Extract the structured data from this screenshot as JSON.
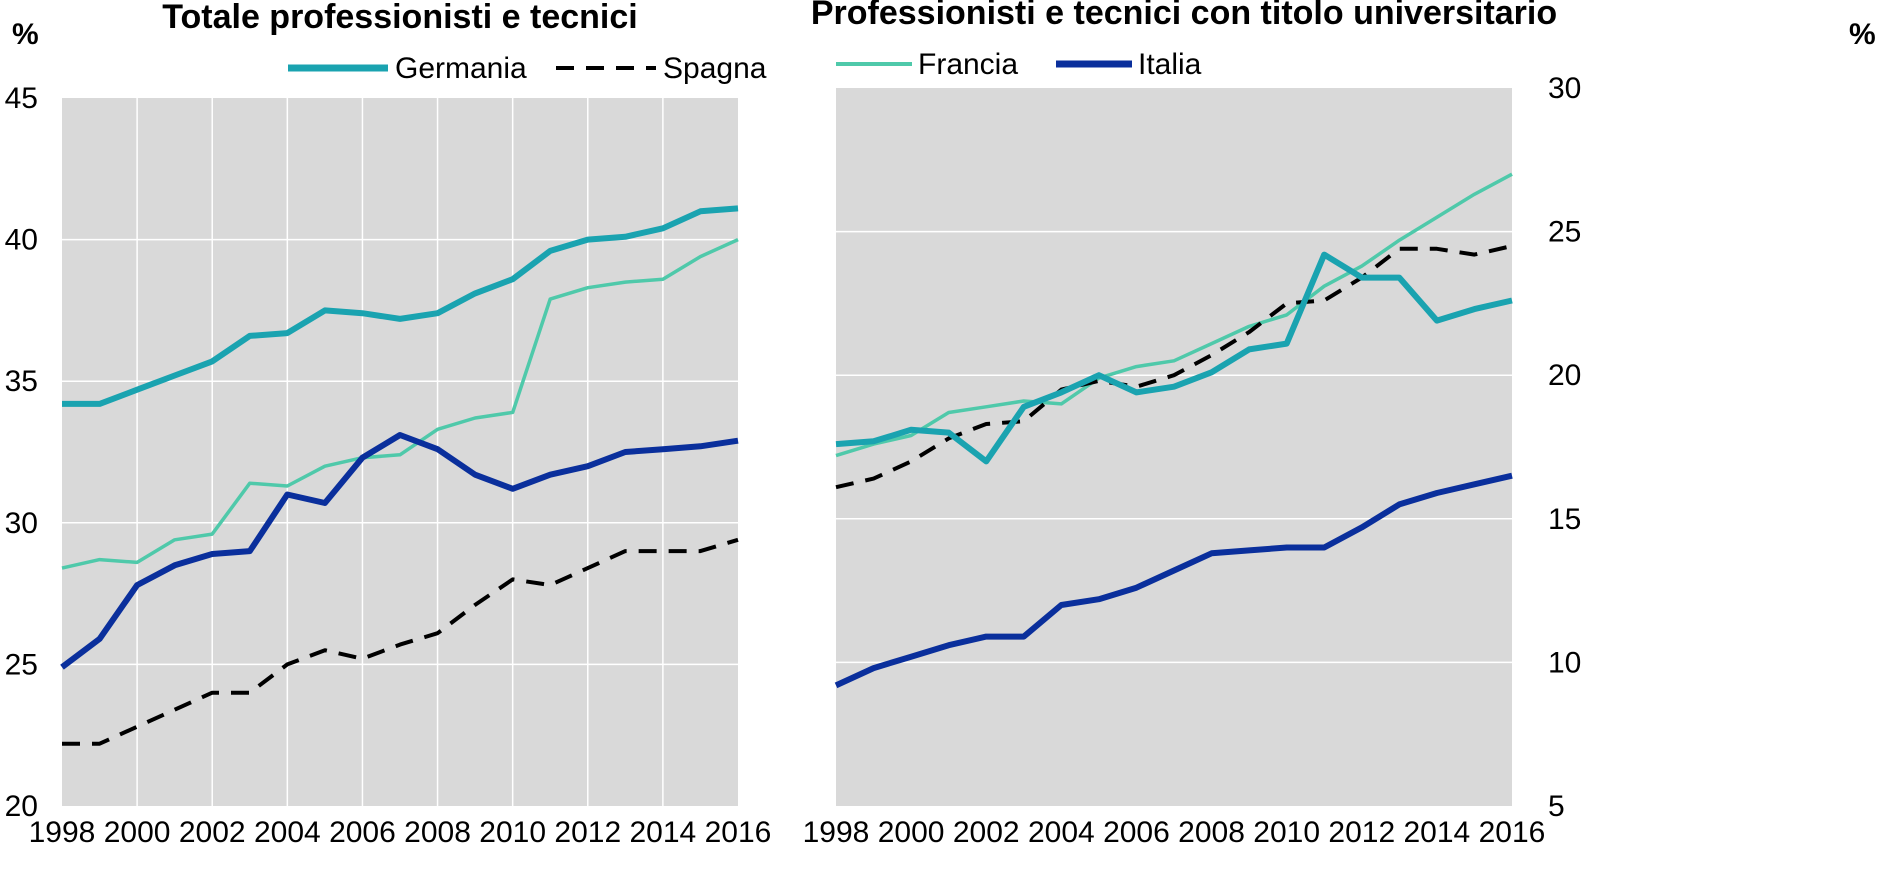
{
  "chart_data": [
    {
      "type": "line",
      "title": "Totale professionisti e tecnici",
      "ylabel": "%",
      "y_axis_side": "left",
      "ylim": [
        20,
        45
      ],
      "yticks": [
        20,
        25,
        30,
        35,
        40,
        45
      ],
      "xlim": [
        1998,
        2016
      ],
      "xticks": [
        1998,
        2000,
        2002,
        2004,
        2006,
        2008,
        2010,
        2012,
        2014,
        2016
      ],
      "grid": "vertical and horizontal",
      "legend": [
        "Germania",
        "Spagna"
      ],
      "x": [
        1998,
        1999,
        2000,
        2001,
        2002,
        2003,
        2004,
        2005,
        2006,
        2007,
        2008,
        2009,
        2010,
        2011,
        2012,
        2013,
        2014,
        2015,
        2016
      ],
      "series": [
        {
          "name": "Germania",
          "color": "#1aa3b0",
          "style": "thick",
          "values": [
            34.2,
            34.2,
            34.7,
            35.2,
            35.7,
            36.6,
            36.7,
            37.5,
            37.4,
            37.2,
            37.4,
            38.1,
            38.6,
            39.6,
            40.0,
            40.1,
            40.4,
            41.0,
            41.1
          ]
        },
        {
          "name": "Spagna",
          "color": "#000000",
          "style": "dashed",
          "values": [
            22.2,
            22.2,
            22.8,
            23.4,
            24.0,
            24.0,
            25.0,
            25.5,
            25.2,
            25.7,
            26.1,
            27.1,
            28.0,
            27.8,
            28.4,
            29.0,
            29.0,
            29.0,
            29.4
          ]
        },
        {
          "name": "Francia",
          "color": "#4fc9aa",
          "style": "thin",
          "values": [
            28.4,
            28.7,
            28.6,
            29.4,
            29.6,
            31.4,
            31.3,
            32.0,
            32.3,
            32.4,
            33.3,
            33.7,
            33.9,
            37.9,
            38.3,
            38.5,
            38.6,
            39.4,
            40.0
          ]
        },
        {
          "name": "Italia",
          "color": "#0a2f9c",
          "style": "thick",
          "values": [
            24.9,
            25.9,
            27.8,
            28.5,
            28.9,
            29.0,
            31.0,
            30.7,
            32.3,
            33.1,
            32.6,
            31.7,
            31.2,
            31.7,
            32.0,
            32.5,
            32.6,
            32.7,
            32.9
          ]
        }
      ]
    },
    {
      "type": "line",
      "title": "Professionisti e tecnici con titolo universitario",
      "ylabel": "%",
      "y_axis_side": "right",
      "ylim": [
        5,
        30
      ],
      "yticks": [
        5,
        10,
        15,
        20,
        25,
        30
      ],
      "xlim": [
        1998,
        2016
      ],
      "xticks": [
        1998,
        2000,
        2002,
        2004,
        2006,
        2008,
        2010,
        2012,
        2014,
        2016
      ],
      "grid": "horizontal",
      "legend": [
        "Francia",
        "Italia"
      ],
      "x": [
        1998,
        1999,
        2000,
        2001,
        2002,
        2003,
        2004,
        2005,
        2006,
        2007,
        2008,
        2009,
        2010,
        2011,
        2012,
        2013,
        2014,
        2015,
        2016
      ],
      "series": [
        {
          "name": "Germania",
          "color": "#1aa3b0",
          "style": "thick",
          "values": [
            17.6,
            17.7,
            18.1,
            18.0,
            17.0,
            18.9,
            19.4,
            20.0,
            19.4,
            19.6,
            20.1,
            20.9,
            21.1,
            24.2,
            23.4,
            23.4,
            21.9,
            22.3,
            22.6
          ]
        },
        {
          "name": "Spagna",
          "color": "#000000",
          "style": "dashed",
          "values": [
            16.1,
            16.4,
            17.0,
            17.8,
            18.3,
            18.4,
            19.5,
            19.8,
            19.6,
            20.0,
            20.7,
            21.5,
            22.5,
            22.6,
            23.4,
            24.4,
            24.4,
            24.2,
            24.5
          ]
        },
        {
          "name": "Francia",
          "color": "#4fc9aa",
          "style": "thin",
          "values": [
            17.2,
            17.6,
            17.9,
            18.7,
            18.9,
            19.1,
            19.0,
            19.9,
            20.3,
            20.5,
            21.1,
            21.7,
            22.1,
            23.1,
            23.8,
            24.7,
            25.5,
            26.3,
            27.0
          ]
        },
        {
          "name": "Italia",
          "color": "#0a2f9c",
          "style": "thick",
          "values": [
            9.2,
            9.8,
            10.2,
            10.6,
            10.9,
            10.9,
            12.0,
            12.2,
            12.6,
            13.2,
            13.8,
            13.9,
            14.0,
            14.0,
            14.7,
            15.5,
            15.9,
            16.2,
            16.5
          ]
        }
      ]
    }
  ]
}
